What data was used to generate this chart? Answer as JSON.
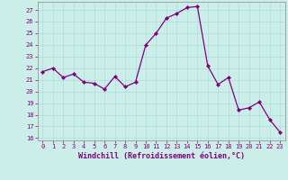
{
  "x": [
    0,
    1,
    2,
    3,
    4,
    5,
    6,
    7,
    8,
    9,
    10,
    11,
    12,
    13,
    14,
    15,
    16,
    17,
    18,
    19,
    20,
    21,
    22,
    23
  ],
  "y": [
    21.7,
    22.0,
    21.2,
    21.5,
    20.8,
    20.7,
    20.2,
    21.3,
    20.4,
    20.8,
    24.0,
    25.0,
    26.3,
    26.7,
    27.2,
    27.3,
    22.2,
    20.6,
    21.2,
    18.4,
    18.6,
    19.1,
    17.6,
    16.5
  ],
  "line_color": "#800080",
  "marker": "D",
  "marker_size": 2.0,
  "bg_color": "#cceee8",
  "grid_color": "#aadddd",
  "xlabel": "Windchill (Refroidissement éolien,°C)",
  "ylabel": "",
  "ylim": [
    15.8,
    27.7
  ],
  "xlim": [
    -0.5,
    23.5
  ],
  "yticks": [
    16,
    17,
    18,
    19,
    20,
    21,
    22,
    23,
    24,
    25,
    26,
    27
  ],
  "xticks": [
    0,
    1,
    2,
    3,
    4,
    5,
    6,
    7,
    8,
    9,
    10,
    11,
    12,
    13,
    14,
    15,
    16,
    17,
    18,
    19,
    20,
    21,
    22,
    23
  ],
  "tick_color": "#800080",
  "tick_fontsize": 5.0,
  "xlabel_fontsize": 6.0,
  "border_color": "#999999",
  "linewidth": 0.9
}
